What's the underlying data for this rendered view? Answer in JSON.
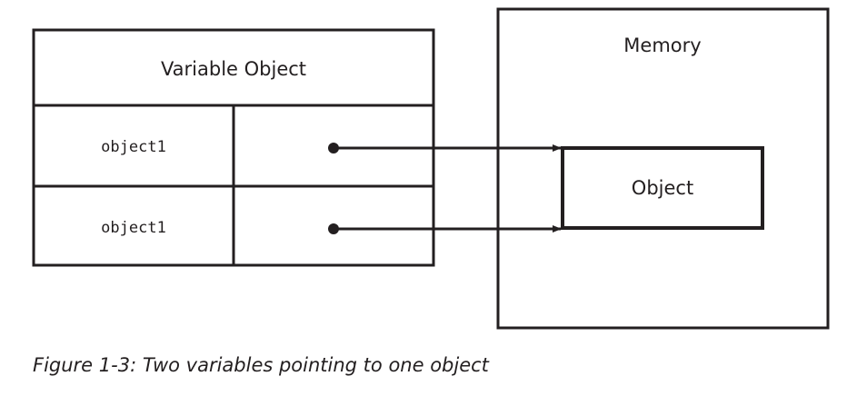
{
  "variable_object": {
    "title": "Variable Object",
    "rows": [
      {
        "name": "object1"
      },
      {
        "name": "object1"
      }
    ]
  },
  "memory": {
    "title": "Memory",
    "object_label": "Object"
  },
  "caption": "Figure 1-3: Two variables pointing to one object",
  "colors": {
    "ink": "#231f20",
    "background": "#ffffff"
  }
}
